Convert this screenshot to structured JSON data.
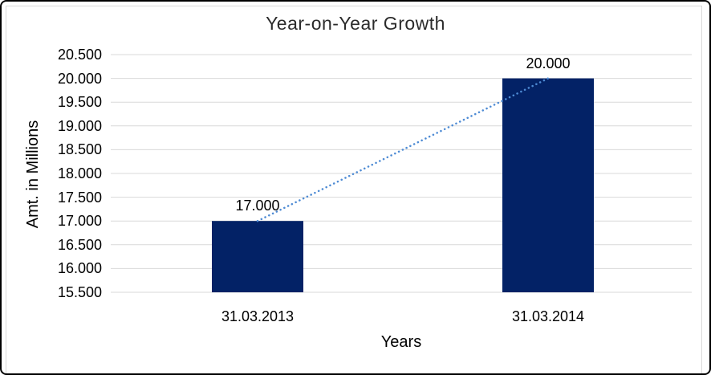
{
  "chart_data": {
    "type": "bar",
    "title": "Year-on-Year Growth",
    "xlabel": "Years",
    "ylabel": "Amt. in Millions",
    "categories": [
      "31.03.2013",
      "31.03.2014"
    ],
    "values": [
      17.0,
      20.0
    ],
    "data_labels": [
      "17.000",
      "20.000"
    ],
    "ylim": [
      15.5,
      20.5
    ],
    "ytick_step": 0.5,
    "ytick_labels": [
      "15.500",
      "16.000",
      "16.500",
      "17.000",
      "17.500",
      "18.000",
      "18.500",
      "19.000",
      "19.500",
      "20.000",
      "20.500"
    ],
    "grid": true,
    "legend": "none",
    "colors": {
      "bar": "#032266",
      "trendline": "#4e8bd4",
      "gridline": "#d9d9d9",
      "text": "#000000",
      "frame_outer": "#000000",
      "frame_inner": "#d9d9d9"
    },
    "trendline": {
      "type": "linear",
      "style": "dotted",
      "from_category": 0,
      "to_category": 1
    }
  }
}
